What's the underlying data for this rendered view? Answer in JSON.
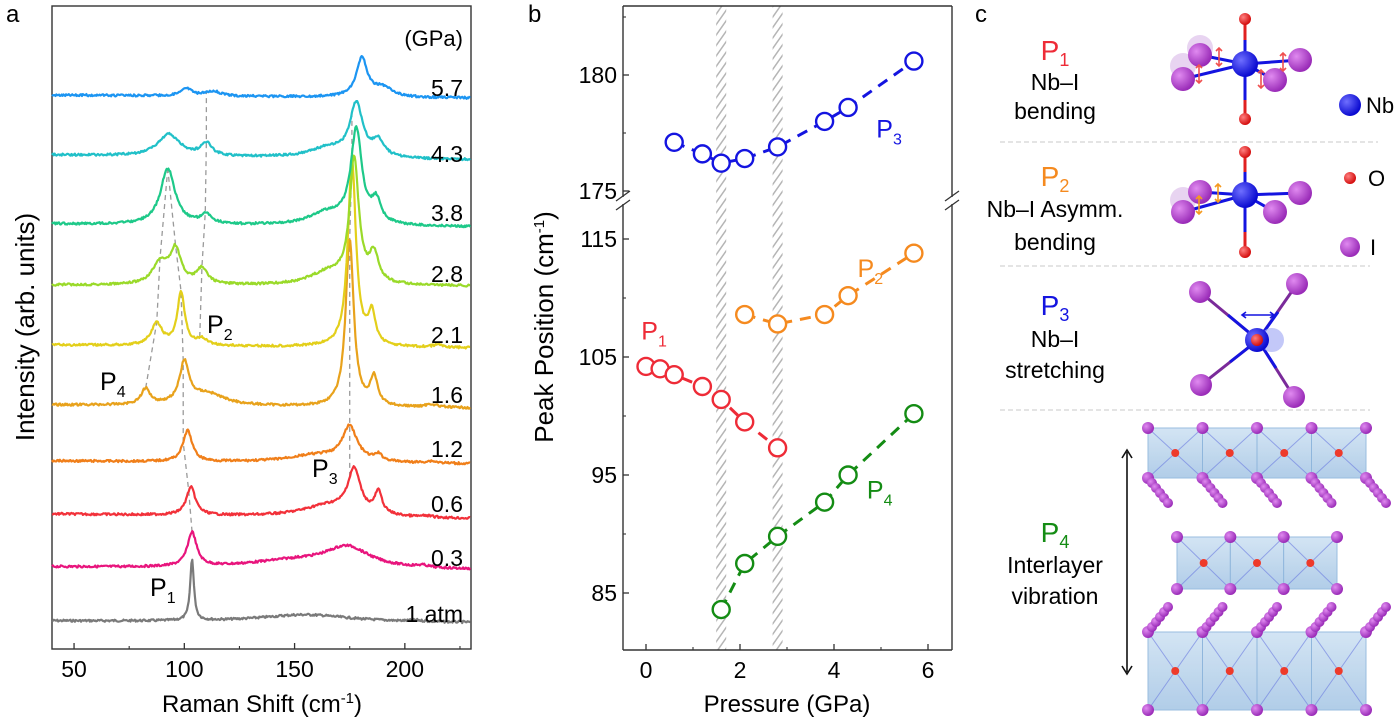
{
  "chart_data": [
    {
      "panel": "a",
      "type": "line",
      "xlabel": "Raman Shift (cm",
      "xlabel_sup": "-1",
      "xlabel_tail": ")",
      "ylabel": "Intensity (arb. units)",
      "xlim": [
        40,
        230
      ],
      "xticks": [
        50,
        100,
        150,
        200
      ],
      "xminor": [
        75,
        125,
        175,
        225
      ],
      "pressure_unit": "(GPa)",
      "series": [
        {
          "name": "1 atm",
          "color": "#7a7a7a",
          "peaks": [
            [
              103.5,
              1.0,
              1.0
            ],
            [
              155,
              0.12,
              25
            ],
            [
              205,
              0.02,
              3
            ]
          ],
          "baseline": 0.0,
          "slope": -0.03
        },
        {
          "name": "0.3",
          "color": "#e8157d",
          "peaks": [
            [
              103.5,
              0.55,
              2.5
            ],
            [
              174,
              0.32,
              12
            ],
            [
              150,
              0.12,
              25
            ],
            [
              208,
              0.03,
              3
            ]
          ],
          "baseline": 0.0,
          "slope": -0.05
        },
        {
          "name": "0.6",
          "color": "#f2313a",
          "peaks": [
            [
              103,
              0.45,
              2.5
            ],
            [
              177,
              0.7,
              3.5
            ],
            [
              188,
              0.35,
              2
            ],
            [
              165,
              0.18,
              14
            ],
            [
              210,
              0.02,
              3
            ]
          ],
          "baseline": 0.0,
          "slope": -0.08
        },
        {
          "name": "1.2",
          "color": "#f07f1a",
          "peaks": [
            [
              101.5,
              0.5,
              2.5
            ],
            [
              175,
              0.55,
              4
            ],
            [
              160,
              0.12,
              16
            ],
            [
              188,
              0.1,
              2
            ],
            [
              212,
              0.03,
              3
            ]
          ],
          "baseline": 0.0,
          "slope": -0.05
        },
        {
          "name": "1.6",
          "color": "#e8a21c",
          "peaks": [
            [
              82.5,
              0.25,
              2.5
            ],
            [
              100,
              0.65,
              2.5
            ],
            [
              175,
              2.7,
              2.2
            ],
            [
              186,
              0.45,
              2.0
            ],
            [
              110,
              0.2,
              10
            ],
            [
              212,
              0.05,
              3
            ]
          ],
          "baseline": 0.0,
          "slope": -0.05
        },
        {
          "name": "2.1",
          "color": "#e3cf1b",
          "peaks": [
            [
              87.5,
              0.35,
              3
            ],
            [
              98.5,
              0.85,
              2
            ],
            [
              108,
              0.1,
              3
            ],
            [
              176,
              3.0,
              2.2
            ],
            [
              185,
              0.5,
              2
            ],
            [
              215,
              0.04,
              3
            ]
          ],
          "baseline": 0.0,
          "slope": -0.05
        },
        {
          "name": "2.8",
          "color": "#9ada2a",
          "peaks": [
            [
              89,
              0.35,
              4
            ],
            [
              96,
              0.55,
              3
            ],
            [
              108,
              0.25,
              3
            ],
            [
              177,
              2.0,
              2.5
            ],
            [
              186,
              0.45,
              2.5
            ],
            [
              165,
              0.2,
              10
            ]
          ],
          "baseline": 0.0,
          "slope": -0.02
        },
        {
          "name": "3.8",
          "color": "#1ec989",
          "peaks": [
            [
              92.5,
              0.9,
              4
            ],
            [
              110,
              0.15,
              3
            ],
            [
              178,
              1.5,
              3
            ],
            [
              187,
              0.35,
              2.5
            ],
            [
              165,
              0.2,
              10
            ]
          ],
          "baseline": 0.0,
          "slope": -0.05
        },
        {
          "name": "4.3",
          "color": "#21c0c8",
          "peaks": [
            [
              93,
              0.35,
              6
            ],
            [
              110,
              0.2,
              3
            ],
            [
              178,
              0.85,
              3.5
            ],
            [
              188,
              0.25,
              3
            ],
            [
              165,
              0.15,
              10
            ]
          ],
          "baseline": 0.0,
          "slope": -0.08
        },
        {
          "name": "5.7",
          "color": "#1c95f2",
          "peaks": [
            [
              101,
              0.12,
              3
            ],
            [
              113,
              0.08,
              4
            ],
            [
              180.5,
              0.62,
              3
            ],
            [
              190,
              0.15,
              5
            ]
          ],
          "baseline": 0.0,
          "slope": -0.05
        }
      ],
      "annotations": [
        {
          "text": "P",
          "sub": "1",
          "x": 90,
          "series": "1 atm"
        },
        {
          "text": "P",
          "sub": "2",
          "x": 111,
          "series": "2.1"
        },
        {
          "text": "P",
          "sub": "3",
          "x": 166,
          "series": "1.2"
        },
        {
          "text": "P",
          "sub": "4",
          "x": 70,
          "series": "1.6"
        }
      ],
      "guides": {
        "P1": [
          [
            103.5,
            "0.3"
          ],
          [
            102,
            "0.6"
          ],
          [
            99.5,
            "1.2"
          ],
          [
            99.5,
            "1.6"
          ],
          [
            98.5,
            "2.1"
          ],
          [
            96,
            "2.8"
          ],
          [
            92.5,
            "3.8"
          ]
        ],
        "P4": [
          [
            82.5,
            "1.6"
          ],
          [
            87.5,
            "2.1"
          ],
          [
            89,
            "2.8"
          ],
          [
            92.5,
            "3.8"
          ]
        ],
        "P2": [
          [
            107,
            "2.1"
          ],
          [
            108,
            "2.8"
          ],
          [
            109.5,
            "3.8"
          ],
          [
            110,
            "4.3"
          ],
          [
            110,
            "5.7"
          ]
        ],
        "P3": [
          [
            175,
            "0.6"
          ],
          [
            175,
            "1.2"
          ],
          [
            175,
            "1.6"
          ],
          [
            176,
            "2.1"
          ],
          [
            176,
            "3.8"
          ],
          [
            176,
            "4.3"
          ]
        ]
      }
    },
    {
      "panel": "b",
      "type": "scatter",
      "xlabel": "Pressure (GPa)",
      "ylabel": "Peak Position (cm",
      "ylabel_sup": "-1",
      "ylabel_tail": ")",
      "xlim": [
        -0.5,
        6.5
      ],
      "xticks": [
        0,
        2,
        4,
        6
      ],
      "xminor": [
        1,
        3,
        5
      ],
      "ylim_upper": [
        174.8,
        183.0
      ],
      "yticks_upper": [
        175,
        180
      ],
      "yminor_upper": [
        177.5,
        182.5
      ],
      "ylim_lower": [
        80,
        117
      ],
      "yticks_lower": [
        85,
        95,
        105,
        115
      ],
      "yminor_lower": [
        90,
        100,
        110
      ],
      "axis_break": true,
      "shaded_pressures": [
        1.6,
        2.8
      ],
      "series": [
        {
          "name": "P",
          "sub": "3",
          "color": "#1414e0",
          "axis": "upper",
          "x": [
            0.6,
            1.2,
            1.6,
            2.1,
            2.8,
            3.8,
            4.3,
            5.7
          ],
          "y": [
            177.1,
            176.6,
            176.2,
            176.4,
            176.9,
            178.0,
            178.6,
            180.6
          ],
          "label_at": [
            4.9,
            177.3
          ]
        },
        {
          "name": "P",
          "sub": "2",
          "color": "#f58a1f",
          "axis": "lower",
          "x": [
            2.1,
            2.8,
            3.8,
            4.3,
            5.7
          ],
          "y": [
            108.6,
            107.8,
            108.6,
            110.2,
            113.8
          ],
          "label_at": [
            4.5,
            111.8
          ]
        },
        {
          "name": "P",
          "sub": "1",
          "color": "#ee2b37",
          "axis": "lower",
          "x": [
            0.0,
            0.3,
            0.6,
            1.2,
            1.6,
            2.1,
            2.8
          ],
          "y": [
            104.2,
            104.0,
            103.5,
            102.5,
            101.4,
            99.5,
            97.3
          ],
          "label_at": [
            -0.1,
            106.5
          ]
        },
        {
          "name": "P",
          "sub": "4",
          "color": "#148c14",
          "axis": "lower",
          "x": [
            1.6,
            2.1,
            2.8,
            3.8,
            4.3,
            5.7
          ],
          "y": [
            83.6,
            87.5,
            89.8,
            92.7,
            95.0,
            100.2
          ],
          "label_at": [
            4.7,
            93.0
          ]
        }
      ]
    }
  ],
  "panel_labels": {
    "a": "a",
    "b": "b",
    "c": "c"
  },
  "panel_c": {
    "modes": [
      {
        "label": "P",
        "sub": "1",
        "color": "#ee2b37",
        "line1": "Nb–I",
        "line2": "bending"
      },
      {
        "label": "P",
        "sub": "2",
        "color": "#f58a1f",
        "line1": "Nb–I Asymm.",
        "line2": "bending"
      },
      {
        "label": "P",
        "sub": "3",
        "color": "#1414e0",
        "line1": "Nb–I",
        "line2": "stretching"
      },
      {
        "label": "P",
        "sub": "4",
        "color": "#148c14",
        "line1": "Interlayer",
        "line2": "vibration"
      }
    ],
    "legend": [
      {
        "atom": "Nb",
        "color": "#1010e8"
      },
      {
        "atom": "O",
        "color": "#e81010"
      },
      {
        "atom": "I",
        "color": "#a040c8"
      }
    ]
  }
}
